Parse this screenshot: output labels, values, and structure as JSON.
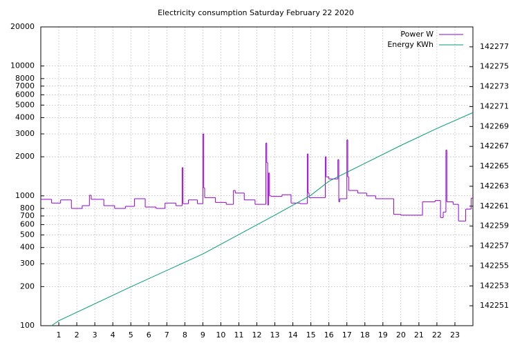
{
  "chart_data": {
    "type": "line",
    "title": "Electricity consumption Saturday February 22 2020",
    "xlim": [
      0,
      24
    ],
    "xticks": [
      1,
      2,
      3,
      4,
      5,
      6,
      7,
      8,
      9,
      10,
      11,
      12,
      13,
      14,
      15,
      16,
      17,
      18,
      19,
      20,
      21,
      22,
      23
    ],
    "ylim": [
      100,
      20000
    ],
    "ylog": true,
    "yticks": [
      100,
      200,
      300,
      400,
      500,
      600,
      700,
      800,
      1000,
      2000,
      3000,
      4000,
      5000,
      6000,
      7000,
      8000,
      10000,
      20000
    ],
    "y2lim": [
      142249,
      142279
    ],
    "y2ticks": [
      142251,
      142253,
      142255,
      142257,
      142259,
      142261,
      142263,
      142265,
      142267,
      142269,
      142271,
      142273,
      142275,
      142277
    ],
    "grid": true,
    "legend": "top right",
    "series": [
      {
        "name": "Power W",
        "color": "#9400d3",
        "style": "steps",
        "x": [
          0,
          0.6,
          1.1,
          1.7,
          2.3,
          2.7,
          2.8,
          3.5,
          4.1,
          4.7,
          5.2,
          5.8,
          6.4,
          6.9,
          7.5,
          7.85,
          7.9,
          8.2,
          8.7,
          9.0,
          9.05,
          9.1,
          9.7,
          10.3,
          10.7,
          10.8,
          11.3,
          11.9,
          12.5,
          12.55,
          12.6,
          12.65,
          12.7,
          12.8,
          13.4,
          13.9,
          14.4,
          14.8,
          14.85,
          14.9,
          15.8,
          15.85,
          16.0,
          16.5,
          16.55,
          16.6,
          17.0,
          17.05,
          17.1,
          17.6,
          18.1,
          18.6,
          19.6,
          20.0,
          21.2,
          21.9,
          22.2,
          22.35,
          22.5,
          22.55,
          22.9,
          23.2,
          23.6,
          23.9
        ],
        "values": [
          940,
          880,
          930,
          800,
          840,
          1010,
          940,
          840,
          800,
          830,
          950,
          820,
          800,
          880,
          840,
          1650,
          870,
          930,
          870,
          3000,
          1150,
          970,
          890,
          860,
          1100,
          1050,
          930,
          860,
          2550,
          1800,
          850,
          1500,
          1000,
          990,
          1020,
          880,
          870,
          2100,
          1050,
          970,
          2000,
          1400,
          1350,
          1900,
          900,
          950,
          2700,
          1400,
          1100,
          1050,
          1000,
          950,
          720,
          710,
          900,
          920,
          680,
          750,
          2250,
          900,
          860,
          640,
          790,
          960
        ]
      },
      {
        "name": "Energy KWh",
        "color": "#009e73",
        "axis": "y2",
        "x": [
          0.6,
          1,
          5,
          9,
          13,
          15,
          16,
          18,
          20,
          22,
          23,
          24
        ],
        "values": [
          142249.0,
          142249.5,
          142252.9,
          142256.2,
          142260.1,
          142262.1,
          142263.5,
          142265.3,
          142267.1,
          142268.8,
          142269.6,
          142270.4
        ]
      }
    ]
  }
}
